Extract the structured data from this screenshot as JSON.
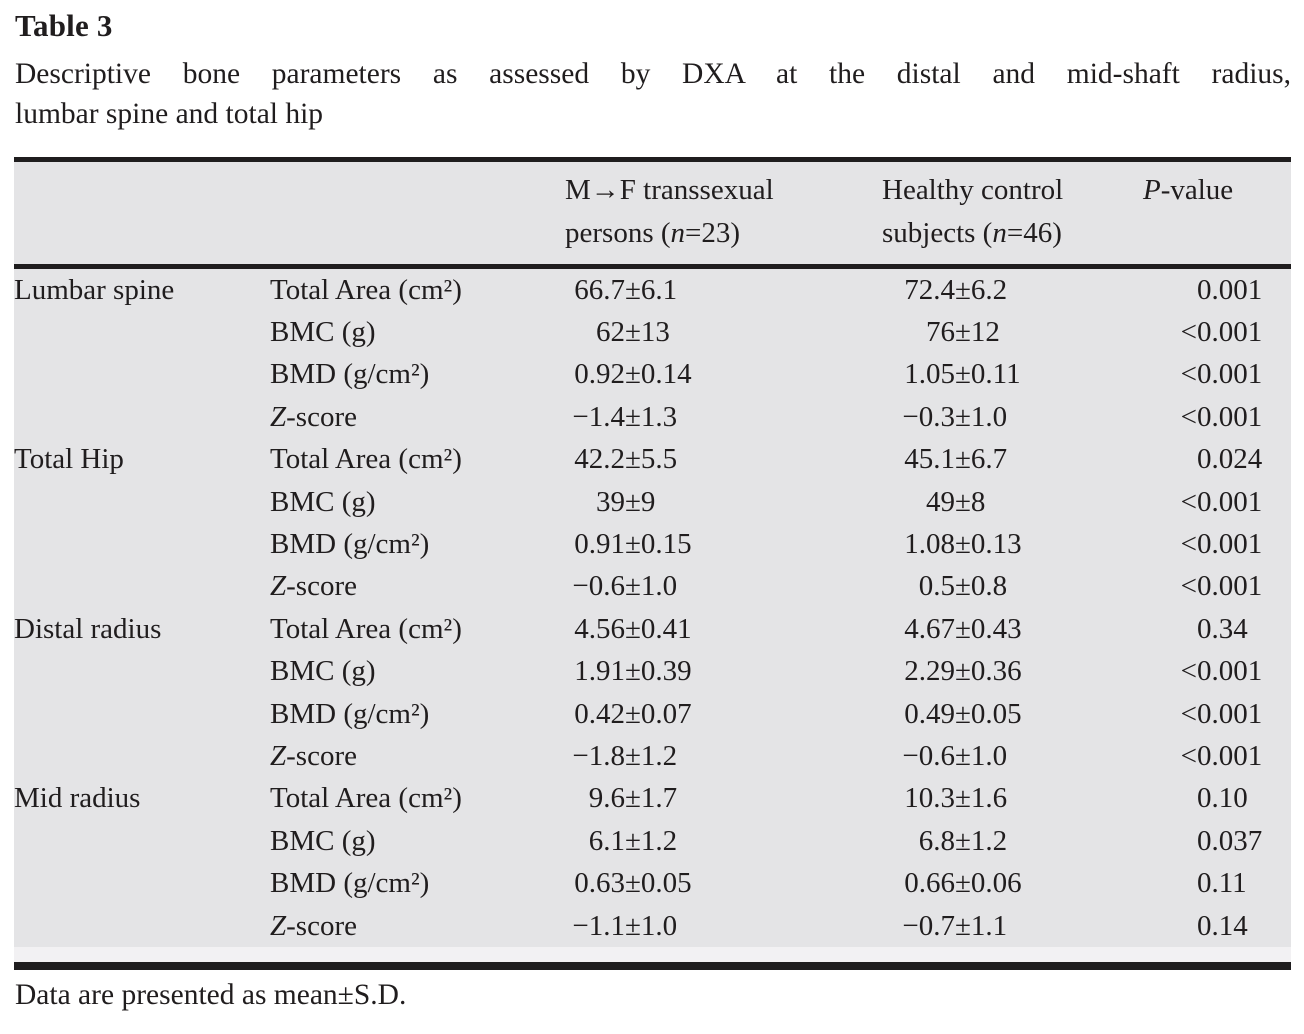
{
  "title": "Table 3",
  "caption_line1": "Descriptive bone parameters as assessed by DXA at the distal and mid-shaft radius,",
  "caption_line2": "lumbar spine and total hip",
  "footnote": "Data are presented as mean±S.D.",
  "colors": {
    "table_background": "#e4e4e6",
    "rule_color": "#1f1d1e",
    "text_color": "#201d1e"
  },
  "header": {
    "mf": {
      "line1": "M→F transsexual",
      "line2_pre": "persons (",
      "line2_it": "n",
      "line2_post": "=23)"
    },
    "control": {
      "line1": "Healthy control",
      "line2_pre": "subjects (",
      "line2_it": "n",
      "line2_post": "=46)"
    },
    "p": {
      "it": "P",
      "rest": "-value"
    }
  },
  "table": {
    "pm_symbol": "±",
    "rows": [
      {
        "group": "Lumbar spine",
        "pit": "",
        "param": "Total Area (cm²)",
        "m1": "66.7",
        "s1": "6.1",
        "m2": "72.4",
        "s2": "6.2",
        "plt": "",
        "p": "0.001"
      },
      {
        "group": "",
        "pit": "",
        "param": "BMC (g)",
        "m1": "62",
        "s1": "13",
        "m2": "76",
        "s2": "12",
        "plt": "<",
        "p": "0.001"
      },
      {
        "group": "",
        "pit": "",
        "param": "BMD (g/cm²)",
        "m1": "0.92",
        "s1": "0.14",
        "m2": "1.05",
        "s2": "0.11",
        "plt": "<",
        "p": "0.001"
      },
      {
        "group": "",
        "pit": "Z",
        "param": "-score",
        "m1": "−1.4",
        "s1": "1.3",
        "m2": "−0.3",
        "s2": "1.0",
        "plt": "<",
        "p": "0.001"
      },
      {
        "group": "Total Hip",
        "pit": "",
        "param": "Total Area (cm²)",
        "m1": "42.2",
        "s1": "5.5",
        "m2": "45.1",
        "s2": "6.7",
        "plt": "",
        "p": "0.024"
      },
      {
        "group": "",
        "pit": "",
        "param": "BMC (g)",
        "m1": "39",
        "s1": "9",
        "m2": "49",
        "s2": "8",
        "plt": "<",
        "p": "0.001"
      },
      {
        "group": "",
        "pit": "",
        "param": "BMD (g/cm²)",
        "m1": "0.91",
        "s1": "0.15",
        "m2": "1.08",
        "s2": "0.13",
        "plt": "<",
        "p": "0.001"
      },
      {
        "group": "",
        "pit": "Z",
        "param": "-score",
        "m1": "−0.6",
        "s1": "1.0",
        "m2": "0.5",
        "s2": "0.8",
        "plt": "<",
        "p": "0.001"
      },
      {
        "group": "Distal radius",
        "pit": "",
        "param": "Total Area (cm²)",
        "m1": "4.56",
        "s1": "0.41",
        "m2": "4.67",
        "s2": "0.43",
        "plt": "",
        "p": "0.34"
      },
      {
        "group": "",
        "pit": "",
        "param": "BMC (g)",
        "m1": "1.91",
        "s1": "0.39",
        "m2": "2.29",
        "s2": "0.36",
        "plt": "<",
        "p": "0.001"
      },
      {
        "group": "",
        "pit": "",
        "param": "BMD (g/cm²)",
        "m1": "0.42",
        "s1": "0.07",
        "m2": "0.49",
        "s2": "0.05",
        "plt": "<",
        "p": "0.001"
      },
      {
        "group": "",
        "pit": "Z",
        "param": "-score",
        "m1": "−1.8",
        "s1": "1.2",
        "m2": "−0.6",
        "s2": "1.0",
        "plt": "<",
        "p": "0.001"
      },
      {
        "group": "Mid radius",
        "pit": "",
        "param": "Total Area (cm²)",
        "m1": "9.6",
        "s1": "1.7",
        "m2": "10.3",
        "s2": "1.6",
        "plt": "",
        "p": "0.10"
      },
      {
        "group": "",
        "pit": "",
        "param": "BMC (g)",
        "m1": "6.1",
        "s1": "1.2",
        "m2": "6.8",
        "s2": "1.2",
        "plt": "",
        "p": "0.037"
      },
      {
        "group": "",
        "pit": "",
        "param": "BMD (g/cm²)",
        "m1": "0.63",
        "s1": "0.05",
        "m2": "0.66",
        "s2": "0.06",
        "plt": "",
        "p": "0.11"
      },
      {
        "group": "",
        "pit": "Z",
        "param": "-score",
        "m1": "−1.1",
        "s1": "1.0",
        "m2": "−0.7",
        "s2": "1.1",
        "plt": "",
        "p": "0.14"
      }
    ]
  }
}
